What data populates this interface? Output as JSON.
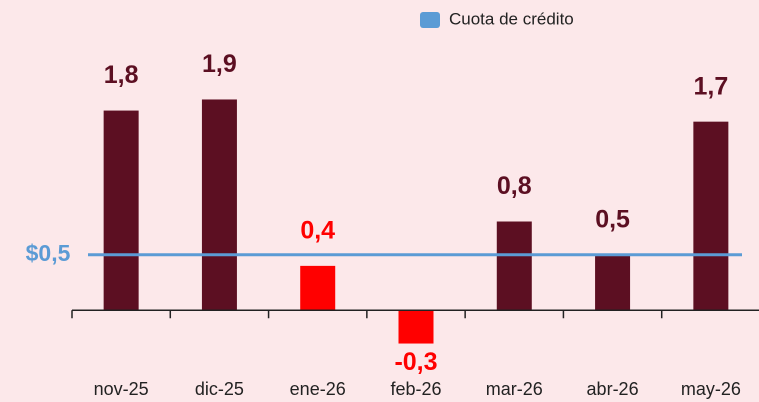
{
  "chart_data": {
    "type": "bar",
    "categories": [
      "nov-25",
      "dic-25",
      "ene-26",
      "feb-26",
      "mar-26",
      "abr-26",
      "may-26"
    ],
    "values": [
      1.8,
      1.9,
      0.4,
      -0.3,
      0.8,
      0.5,
      1.7
    ],
    "value_labels": [
      "1,8",
      "1,9",
      "0,4",
      "-0,3",
      "0,8",
      "0,5",
      "1,7"
    ],
    "colors": [
      "#5c0f22",
      "#5c0f22",
      "#ff0000",
      "#ff0000",
      "#5c0f22",
      "#5c0f22",
      "#5c0f22"
    ],
    "ylim": [
      -0.8,
      2.4
    ],
    "reference_line": {
      "name": "Cuota de crédito",
      "value": 0.5,
      "value_label": "$0,5",
      "color": "#5b9bd5"
    },
    "legend": "top-right"
  }
}
